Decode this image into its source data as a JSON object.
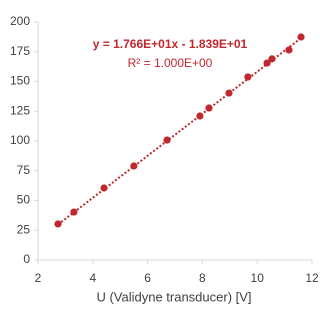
{
  "chart_data": {
    "type": "scatter",
    "x_label": "U (Validyne transducer) [V]",
    "annotations": [
      "y = 1.766E+01x  - 1.839E+01",
      "R² = 1.000E+00"
    ],
    "trendline": {
      "slope": 17.66,
      "intercept": -18.39,
      "color": "#c0282e"
    },
    "series": [
      {
        "color": "#c0282e",
        "x": [
          2.73,
          3.31,
          4.41,
          5.5,
          6.71,
          7.91,
          8.24,
          8.97,
          9.66,
          10.36,
          10.54,
          11.16,
          11.6
        ],
        "values": [
          30.3,
          40.3,
          60.5,
          79,
          100.8,
          121,
          127.7,
          140.3,
          153.8,
          165.5,
          169,
          176.5,
          187.4
        ]
      }
    ],
    "xlim": [
      2,
      12
    ],
    "xticks": [
      2,
      4,
      6,
      8,
      10,
      12
    ],
    "ylim": [
      0,
      200
    ],
    "yticks": [
      0,
      25,
      50,
      75,
      100,
      125,
      150,
      175,
      200
    ]
  }
}
